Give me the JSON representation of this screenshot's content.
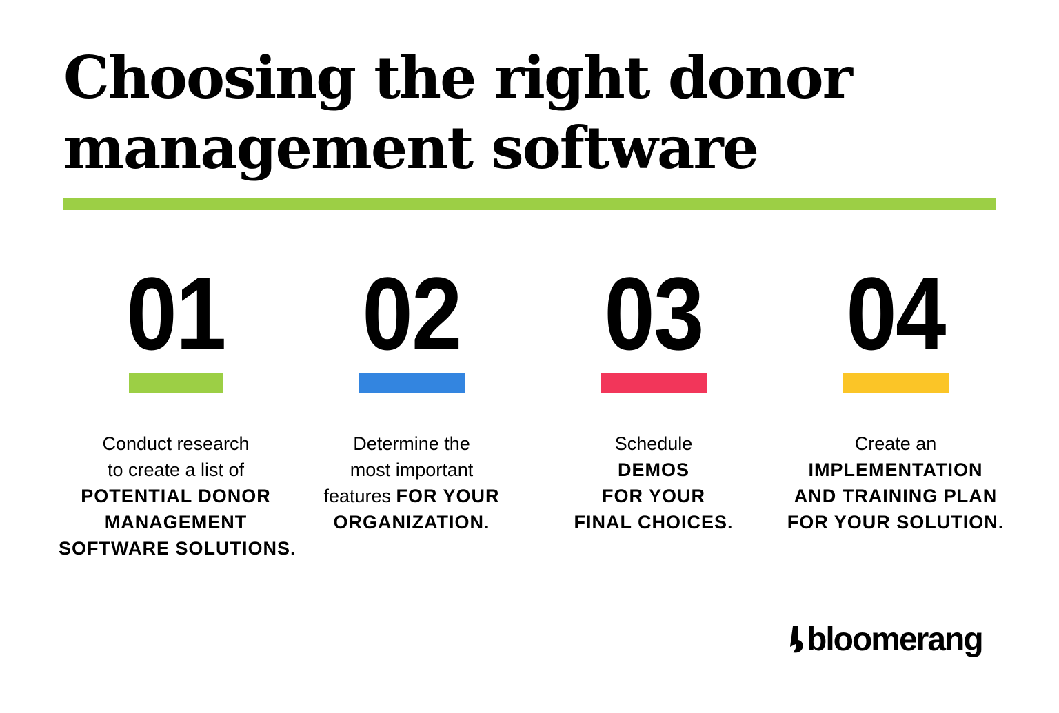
{
  "title": {
    "line1": "Choosing the right donor",
    "line2": "management software"
  },
  "colors": {
    "green": "#9ccf45",
    "blue": "#3385e0",
    "red": "#f2365a",
    "yellow": "#fbc527"
  },
  "steps": [
    {
      "number": "01",
      "color": "#9ccf45",
      "lines": [
        {
          "normal": "Conduct research",
          "bold": ""
        },
        {
          "normal": "to create a list of",
          "bold": ""
        },
        {
          "normal": "",
          "bold": "POTENTIAL DONOR"
        },
        {
          "normal": "",
          "bold": "MANAGEMENT"
        },
        {
          "normal": "",
          "bold": "SOFTWARE SOLUTIONS."
        }
      ]
    },
    {
      "number": "02",
      "color": "#3385e0",
      "lines": [
        {
          "normal": "Determine the",
          "bold": ""
        },
        {
          "normal": "most important",
          "bold": ""
        },
        {
          "normal": "features ",
          "bold": "FOR YOUR"
        },
        {
          "normal": "",
          "bold": "ORGANIZATION."
        }
      ]
    },
    {
      "number": "03",
      "color": "#f2365a",
      "lines": [
        {
          "normal": "Schedule",
          "bold": ""
        },
        {
          "normal": "",
          "bold": "DEMOS"
        },
        {
          "normal": "",
          "bold": "FOR YOUR"
        },
        {
          "normal": "",
          "bold": "FINAL CHOICES."
        }
      ]
    },
    {
      "number": "04",
      "color": "#fbc527",
      "lines": [
        {
          "normal": "Create an",
          "bold": ""
        },
        {
          "normal": "",
          "bold": "IMPLEMENTATION"
        },
        {
          "normal": "",
          "bold": "AND TRAINING PLAN"
        },
        {
          "normal": "",
          "bold": "FOR YOUR SOLUTION."
        }
      ]
    }
  ],
  "logo": {
    "text": "bloomerang",
    "icon": "bloomerang-boomerang-icon"
  }
}
